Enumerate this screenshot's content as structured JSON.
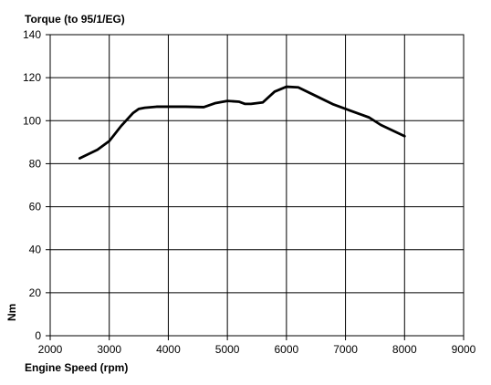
{
  "chart_data": {
    "type": "line",
    "title": "Torque  (to 95/1/EG)",
    "xlabel": "Engine Speed (rpm)",
    "ylabel": "Nm",
    "xlim": [
      2000,
      9000
    ],
    "ylim": [
      0,
      140
    ],
    "xticks": [
      2000,
      3000,
      4000,
      5000,
      6000,
      7000,
      8000,
      9000
    ],
    "yticks": [
      0,
      20,
      40,
      60,
      80,
      100,
      120,
      140
    ],
    "grid": true,
    "legend": "none",
    "series": [
      {
        "color": "#000000",
        "x": [
          2500,
          2800,
          3000,
          3200,
          3400,
          3500,
          3600,
          3800,
          4000,
          4300,
          4600,
          4800,
          5000,
          5200,
          5300,
          5400,
          5600,
          5800,
          6000,
          6200,
          6500,
          6800,
          7000,
          7200,
          7400,
          7600,
          8000
        ],
        "y": [
          82.5,
          86.5,
          90.5,
          97.5,
          103.5,
          105.5,
          106,
          106.5,
          106.5,
          106.5,
          106.3,
          108.2,
          109.2,
          108.8,
          107.8,
          107.8,
          108.5,
          113.5,
          115.8,
          115.5,
          111.5,
          107.5,
          105.5,
          103.5,
          101.5,
          98,
          92.8
        ]
      }
    ]
  }
}
